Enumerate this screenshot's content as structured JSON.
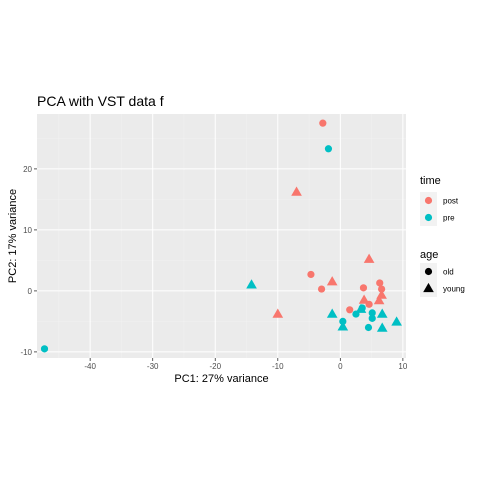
{
  "chart_data": {
    "type": "scatter",
    "title": "PCA with VST data f",
    "xlabel": "PC1: 27% variance",
    "ylabel": "PC2: 17% variance",
    "xlim": [
      -48.5,
      10.5
    ],
    "ylim": [
      -11,
      29
    ],
    "xticks": [
      -40,
      -30,
      -20,
      -10,
      0,
      10
    ],
    "yticks": [
      -10,
      0,
      10,
      20
    ],
    "xtick_labels": [
      "-40",
      "-30",
      "-20",
      "-10",
      "0",
      "10"
    ],
    "ytick_labels": [
      "-10",
      "0",
      "10",
      "20"
    ],
    "grid": true,
    "legend_position": "right",
    "colors": {
      "post": "#F8766D",
      "pre": "#00BFC4",
      "panel": "#EBEBEB",
      "grid_major": "#FFFFFF",
      "grid_minor": "#F2F2F2"
    },
    "legends": {
      "color": {
        "title": "time",
        "entries": [
          {
            "label": "post",
            "key": "post"
          },
          {
            "label": "pre",
            "key": "pre"
          }
        ]
      },
      "shape": {
        "title": "age",
        "entries": [
          {
            "label": "old",
            "shape": "circle"
          },
          {
            "label": "young",
            "shape": "triangle"
          }
        ]
      }
    },
    "points": [
      {
        "x": -2.8,
        "y": 27.5,
        "time": "post",
        "age": "old"
      },
      {
        "x": -1.9,
        "y": 23.3,
        "time": "pre",
        "age": "old"
      },
      {
        "x": -7.0,
        "y": 16.2,
        "time": "post",
        "age": "young"
      },
      {
        "x": 4.6,
        "y": 5.2,
        "time": "post",
        "age": "young"
      },
      {
        "x": -4.7,
        "y": 2.7,
        "time": "post",
        "age": "old"
      },
      {
        "x": -1.3,
        "y": 1.5,
        "time": "post",
        "age": "young"
      },
      {
        "x": -14.2,
        "y": 1.0,
        "time": "pre",
        "age": "young"
      },
      {
        "x": 6.3,
        "y": 1.3,
        "time": "post",
        "age": "old"
      },
      {
        "x": 3.7,
        "y": 0.5,
        "time": "post",
        "age": "old"
      },
      {
        "x": -3.0,
        "y": 0.3,
        "time": "post",
        "age": "old"
      },
      {
        "x": 6.6,
        "y": 0.3,
        "time": "post",
        "age": "old"
      },
      {
        "x": 6.6,
        "y": -0.7,
        "time": "post",
        "age": "young"
      },
      {
        "x": 3.8,
        "y": -1.5,
        "time": "post",
        "age": "young"
      },
      {
        "x": 6.2,
        "y": -1.6,
        "time": "post",
        "age": "young"
      },
      {
        "x": 4.6,
        "y": -2.2,
        "time": "post",
        "age": "old"
      },
      {
        "x": 3.5,
        "y": -2.8,
        "time": "pre",
        "age": "old"
      },
      {
        "x": 1.5,
        "y": -3.1,
        "time": "post",
        "age": "old"
      },
      {
        "x": 3.3,
        "y": -3.0,
        "time": "pre",
        "age": "young"
      },
      {
        "x": 2.5,
        "y": -3.8,
        "time": "pre",
        "age": "old"
      },
      {
        "x": 5.1,
        "y": -3.6,
        "time": "pre",
        "age": "old"
      },
      {
        "x": -10.0,
        "y": -3.8,
        "time": "post",
        "age": "young"
      },
      {
        "x": -1.3,
        "y": -3.8,
        "time": "pre",
        "age": "young"
      },
      {
        "x": 6.7,
        "y": -3.8,
        "time": "pre",
        "age": "young"
      },
      {
        "x": 5.1,
        "y": -4.5,
        "time": "pre",
        "age": "old"
      },
      {
        "x": 0.4,
        "y": -5.0,
        "time": "pre",
        "age": "old"
      },
      {
        "x": 9.0,
        "y": -5.1,
        "time": "pre",
        "age": "young"
      },
      {
        "x": 0.4,
        "y": -5.9,
        "time": "pre",
        "age": "young"
      },
      {
        "x": 4.5,
        "y": -6.0,
        "time": "pre",
        "age": "old"
      },
      {
        "x": 6.7,
        "y": -6.1,
        "time": "pre",
        "age": "young"
      },
      {
        "x": -47.3,
        "y": -9.5,
        "time": "pre",
        "age": "old"
      }
    ]
  }
}
